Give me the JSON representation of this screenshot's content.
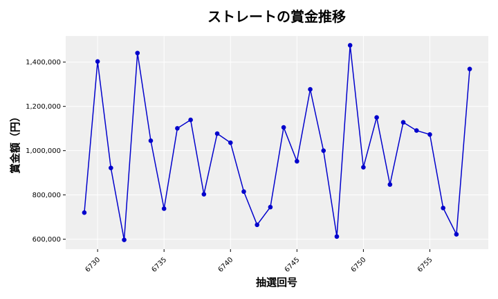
{
  "chart_data": {
    "type": "line",
    "title": "ストレートの賞金推移",
    "xlabel": "抽選回号",
    "ylabel": "賞金額（円）",
    "x": [
      6729,
      6730,
      6731,
      6732,
      6733,
      6734,
      6735,
      6736,
      6737,
      6738,
      6739,
      6740,
      6741,
      6742,
      6743,
      6744,
      6745,
      6746,
      6747,
      6748,
      6749,
      6750,
      6751,
      6752,
      6753,
      6754,
      6755,
      6756,
      6757,
      6758
    ],
    "series": [
      {
        "values": [
          720000,
          1403000,
          922000,
          597000,
          1441000,
          1045000,
          738000,
          1101000,
          1139000,
          803000,
          1077000,
          1036000,
          815000,
          665000,
          745000,
          1105000,
          952000,
          1277000,
          1000000,
          612000,
          1476000,
          925000,
          1150000,
          847000,
          1128000,
          1091000,
          1073000,
          741000,
          622000,
          1369000
        ],
        "color": "#0000cc"
      }
    ],
    "xlim": [
      6727.6,
      6759.4
    ],
    "ylim": [
      555000,
      1518000
    ],
    "x_ticks": [
      6730,
      6735,
      6740,
      6745,
      6750,
      6755
    ],
    "x_tick_labels": [
      "6730",
      "6735",
      "6740",
      "6745",
      "6750",
      "6755"
    ],
    "y_ticks": [
      600000,
      800000,
      1000000,
      1200000,
      1400000
    ],
    "y_tick_labels": [
      "600,000",
      "800,000",
      "1,000,000",
      "1,200,000",
      "1,400,000"
    ],
    "grid": true,
    "background": "#efefef"
  }
}
